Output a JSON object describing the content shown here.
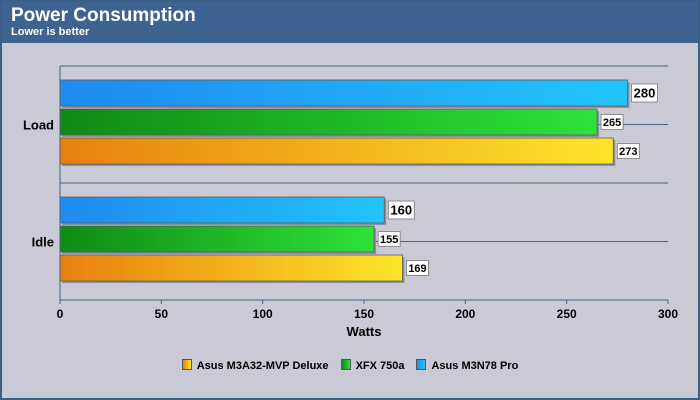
{
  "header": {
    "title": "Power Consumption",
    "subtitle": "Lower is better"
  },
  "chart_data": {
    "type": "bar",
    "orientation": "horizontal",
    "title": "Power Consumption",
    "subtitle": "Lower is better",
    "xlabel": "Watts",
    "ylabel": "",
    "xlim": [
      0,
      300
    ],
    "xticks": [
      0,
      50,
      100,
      150,
      200,
      250,
      300
    ],
    "categories": [
      "Load",
      "Idle"
    ],
    "series": [
      {
        "name": "Asus M3N78 Pro",
        "values": [
          280,
          160
        ],
        "color_start": "#1f8af0",
        "color_end": "#22c4fb"
      },
      {
        "name": "XFX 750a",
        "values": [
          265,
          155
        ],
        "color_start": "#0f8a14",
        "color_end": "#2ee23a"
      },
      {
        "name": "Asus M3A32-MVP Deluxe",
        "values": [
          273,
          169
        ],
        "color_start": "#e8800e",
        "color_end": "#fde52a"
      }
    ],
    "legend_order": [
      "Asus M3A32-MVP Deluxe",
      "XFX 750a",
      "Asus M3N78 Pro"
    ],
    "legend_position": "bottom",
    "grid": true
  }
}
